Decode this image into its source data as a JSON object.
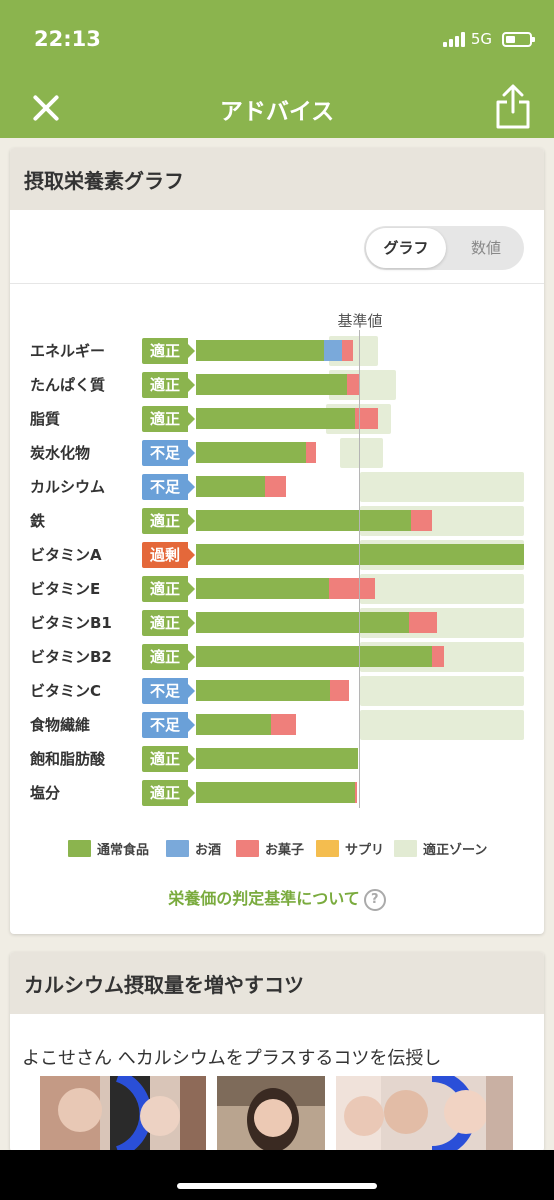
{
  "status_bar": {
    "time": "22:13",
    "network": "5G"
  },
  "nav": {
    "title": "アドバイス"
  },
  "graph_card": {
    "title": "摂取栄養素グラフ",
    "toggle": {
      "graph": "グラフ",
      "numeric": "数値",
      "selected": "graph"
    },
    "reference_label": "基準値",
    "nutrients": [
      {
        "name": "エネルギー",
        "status": "適正"
      },
      {
        "name": "たんぱく質",
        "status": "適正"
      },
      {
        "name": "脂質",
        "status": "適正"
      },
      {
        "name": "炭水化物",
        "status": "不足"
      },
      {
        "name": "カルシウム",
        "status": "不足"
      },
      {
        "name": "鉄",
        "status": "適正"
      },
      {
        "name": "ビタミンA",
        "status": "過剰"
      },
      {
        "name": "ビタミンE",
        "status": "適正"
      },
      {
        "name": "ビタミンB1",
        "status": "適正"
      },
      {
        "name": "ビタミンB2",
        "status": "適正"
      },
      {
        "name": "ビタミンC",
        "status": "不足"
      },
      {
        "name": "食物繊維",
        "status": "不足"
      },
      {
        "name": "飽和脂肪酸",
        "status": "適正"
      },
      {
        "name": "塩分",
        "status": "適正"
      }
    ],
    "legend": [
      {
        "label": "通常食品",
        "color": "#8bb44e"
      },
      {
        "label": "お酒",
        "color": "#7aa9da"
      },
      {
        "label": "お菓子",
        "color": "#ef7f7b"
      },
      {
        "label": "サプリ",
        "color": "#f4bd4f"
      },
      {
        "label": "適正ゾーン",
        "color": "#e2ebd3"
      }
    ],
    "criteria_link": "栄養価の判定基準について",
    "help_icon": "question-circle-icon"
  },
  "tip_card": {
    "title": "カルシウム摂取量を増やすコツ",
    "text": "よこせさん へカルシウムをプラスするコツを伝授し"
  },
  "colors": {
    "brand": "#8bb44e",
    "status_ok": "#8bb44e",
    "status_low": "#6aa0d8",
    "status_over": "#e4683a"
  },
  "chart_data": {
    "type": "bar",
    "orientation": "horizontal",
    "stacked": true,
    "reference_line": 1.0,
    "xlim": [
      0,
      2.0
    ],
    "categories": [
      "エネルギー",
      "たんぱく質",
      "脂質",
      "炭水化物",
      "カルシウム",
      "鉄",
      "ビタミンA",
      "ビタミンE",
      "ビタミンB1",
      "ビタミンB2",
      "ビタミンC",
      "食物繊維",
      "飽和脂肪酸",
      "塩分"
    ],
    "series": [
      {
        "name": "通常食品",
        "values": [
          0.78,
          0.92,
          0.97,
          0.67,
          0.42,
          1.31,
          2.0,
          0.81,
          1.3,
          1.44,
          0.82,
          0.46,
          0.99,
          0.97
        ]
      },
      {
        "name": "お酒",
        "values": [
          0.11,
          0,
          0,
          0,
          0,
          0,
          0,
          0,
          0,
          0,
          0,
          0,
          0,
          0
        ]
      },
      {
        "name": "お菓子",
        "values": [
          0.07,
          0.08,
          0.14,
          0.06,
          0.13,
          0.13,
          0,
          0.28,
          0.17,
          0.07,
          0.11,
          0.15,
          0,
          0.01
        ]
      },
      {
        "name": "サプリ",
        "values": [
          0,
          0,
          0,
          0,
          0,
          0,
          0,
          0,
          0,
          0,
          0,
          0,
          0,
          0
        ]
      }
    ],
    "optimal_zone": [
      [
        0.81,
        1.11
      ],
      [
        0.81,
        1.22
      ],
      [
        0.79,
        1.19
      ],
      [
        0.88,
        1.14
      ],
      [
        1.0,
        2.0
      ],
      [
        1.0,
        2.0
      ],
      [
        1.0,
        2.0
      ],
      [
        1.0,
        2.0
      ],
      [
        1.0,
        2.0
      ],
      [
        1.0,
        2.0
      ],
      [
        1.0,
        2.0
      ],
      [
        1.0,
        2.0
      ],
      null,
      null
    ]
  }
}
